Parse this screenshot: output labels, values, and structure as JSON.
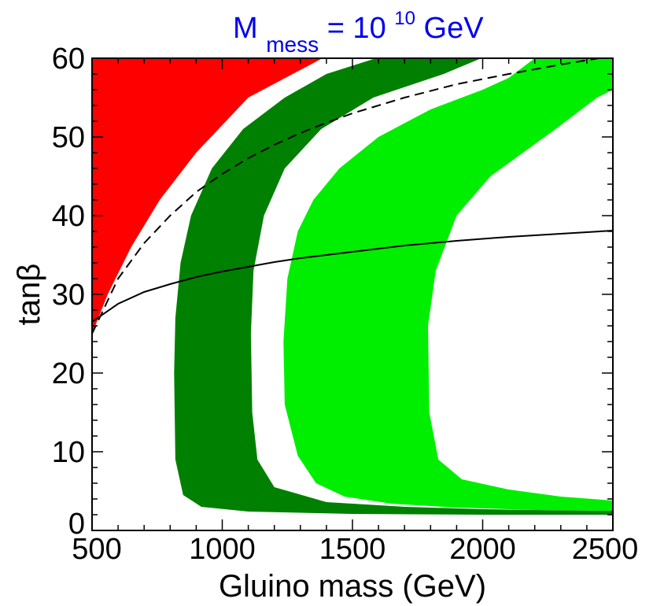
{
  "chart_data": {
    "type": "area",
    "title": {
      "base": "M",
      "subscript": "mess",
      "middle": " = 10",
      "superscript": "10",
      "suffix": " GeV",
      "color": "#0000ee"
    },
    "xlabel": "Gluino mass  (GeV)",
    "ylabel": "tanβ",
    "xlim": [
      500,
      2500
    ],
    "ylim": [
      0,
      60
    ],
    "x_ticks": [
      500,
      1000,
      1500,
      2000,
      2500
    ],
    "y_ticks": [
      0,
      10,
      20,
      30,
      40,
      50,
      60
    ],
    "regions": [
      {
        "name": "excluded-region",
        "color": "#ff0000",
        "points": [
          [
            500,
            60
          ],
          [
            1385,
            60
          ],
          [
            1100,
            55
          ],
          [
            900,
            48
          ],
          [
            760,
            42
          ],
          [
            650,
            36
          ],
          [
            560,
            30
          ],
          [
            500,
            25
          ],
          [
            500,
            60
          ]
        ]
      },
      {
        "name": "dark-green-band",
        "color": "#008000",
        "points": [
          [
            1995,
            60
          ],
          [
            1850,
            58
          ],
          [
            1580,
            55
          ],
          [
            1380,
            51
          ],
          [
            1240,
            46
          ],
          [
            1160,
            40
          ],
          [
            1120,
            33
          ],
          [
            1110,
            25
          ],
          [
            1115,
            15
          ],
          [
            1135,
            9
          ],
          [
            1200,
            5.5
          ],
          [
            1400,
            3.6
          ],
          [
            1700,
            3.0
          ],
          [
            2000,
            2.7
          ],
          [
            2300,
            2.55
          ],
          [
            2500,
            2.5
          ],
          [
            2500,
            2.0
          ],
          [
            2000,
            2.0
          ],
          [
            1500,
            2.1
          ],
          [
            1100,
            2.4
          ],
          [
            920,
            3.0
          ],
          [
            850,
            4.5
          ],
          [
            820,
            9
          ],
          [
            815,
            20
          ],
          [
            820,
            27
          ],
          [
            840,
            34
          ],
          [
            880,
            40
          ],
          [
            960,
            46
          ],
          [
            1080,
            51
          ],
          [
            1240,
            55
          ],
          [
            1400,
            58
          ],
          [
            1590,
            60
          ],
          [
            1995,
            60
          ]
        ]
      },
      {
        "name": "light-green-band",
        "color": "#00ee00",
        "points": [
          [
            2500,
            60
          ],
          [
            2500,
            56
          ],
          [
            2440,
            55
          ],
          [
            2280,
            51
          ],
          [
            2030,
            45
          ],
          [
            1900,
            40
          ],
          [
            1820,
            33
          ],
          [
            1790,
            26
          ],
          [
            1795,
            15
          ],
          [
            1830,
            9
          ],
          [
            1920,
            6.5
          ],
          [
            2100,
            5.2
          ],
          [
            2300,
            4.3
          ],
          [
            2500,
            3.8
          ],
          [
            2500,
            2.5
          ],
          [
            2200,
            2.6
          ],
          [
            1900,
            2.9
          ],
          [
            1650,
            3.4
          ],
          [
            1470,
            4.3
          ],
          [
            1360,
            6
          ],
          [
            1290,
            9.5
          ],
          [
            1240,
            16
          ],
          [
            1235,
            24
          ],
          [
            1250,
            32
          ],
          [
            1290,
            38
          ],
          [
            1350,
            42
          ],
          [
            1450,
            46
          ],
          [
            1600,
            50
          ],
          [
            1800,
            53.5
          ],
          [
            2000,
            56
          ],
          [
            2100,
            57.5
          ],
          [
            2200,
            60
          ],
          [
            2500,
            60
          ]
        ]
      }
    ],
    "series": [
      {
        "name": "dashed-curve",
        "style": "dashed",
        "color": "#000000",
        "points": [
          [
            500,
            25
          ],
          [
            600,
            32
          ],
          [
            700,
            36.5
          ],
          [
            800,
            40
          ],
          [
            900,
            43
          ],
          [
            1000,
            45.3
          ],
          [
            1100,
            47.3
          ],
          [
            1200,
            49
          ],
          [
            1300,
            50.5
          ],
          [
            1400,
            51.8
          ],
          [
            1500,
            53
          ],
          [
            1700,
            55
          ],
          [
            1900,
            56.7
          ],
          [
            2100,
            58
          ],
          [
            2300,
            59.2
          ],
          [
            2500,
            60.3
          ]
        ]
      },
      {
        "name": "solid-curve",
        "style": "solid",
        "color": "#000000",
        "points": [
          [
            500,
            26.5
          ],
          [
            600,
            28.8
          ],
          [
            700,
            30.3
          ],
          [
            800,
            31.3
          ],
          [
            900,
            32.2
          ],
          [
            1000,
            32.9
          ],
          [
            1100,
            33.5
          ],
          [
            1200,
            34.1
          ],
          [
            1300,
            34.6
          ],
          [
            1500,
            35.4
          ],
          [
            1700,
            36.2
          ],
          [
            1900,
            36.8
          ],
          [
            2100,
            37.3
          ],
          [
            2300,
            37.7
          ],
          [
            2500,
            38.1
          ]
        ]
      }
    ]
  }
}
